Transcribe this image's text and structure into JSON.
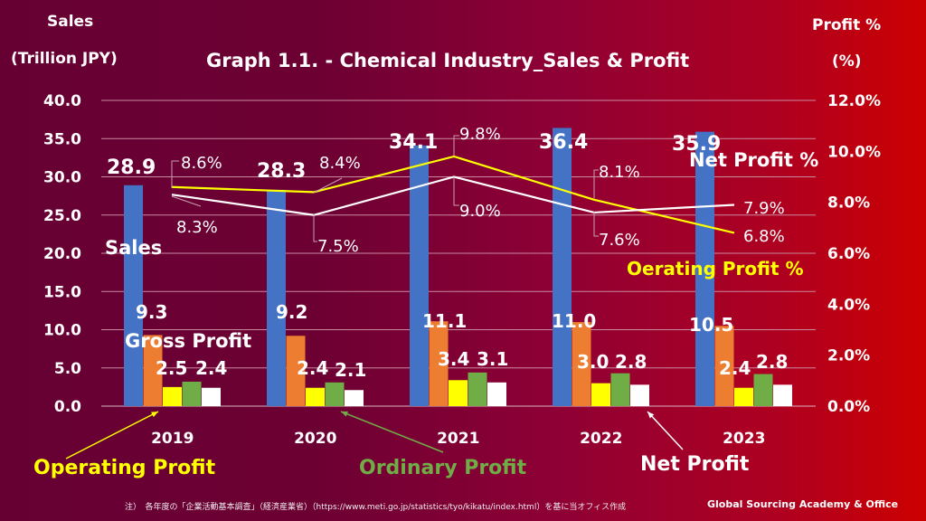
{
  "header": {
    "left_axis_title_line1": "Sales",
    "left_axis_title_line2": "(Trillion JPY)",
    "title": "Graph 1.1. -  Chemical Industry_Sales & Profit",
    "right_axis_title_line1": "Profit %",
    "right_axis_title_line2": "(%)"
  },
  "callouts": {
    "sales": "Sales",
    "gross_profit": "Gross Profit",
    "operating_profit": "Operating Profit",
    "ordinary_profit": "Ordinary Profit",
    "net_profit": "Net Profit",
    "net_profit_pct": "Net Profit %",
    "operating_profit_pct": "Oerating Profit %"
  },
  "colors": {
    "sales": "#4472c4",
    "gross_profit": "#ed7d31",
    "operating_profit": "#ffff00",
    "ordinary_profit": "#70ad47",
    "net_profit": "#ffffff",
    "operating_profit_pct_line": "#ffff00",
    "net_profit_pct_line": "#ffffff"
  },
  "footer": {
    "note": "注）　各年度の「企業活動基本調査」（経済産業省）（https://www.meti.go.jp/statistics/tyo/kikatu/index.html）を基に当オフィス作成",
    "brand": "Global Sourcing Academy & Office"
  },
  "chart_data": {
    "type": "bar",
    "title": "Graph 1.1. -  Chemical Industry_Sales & Profit",
    "xlabel": "",
    "ylabel": "Sales (Trillion JPY)",
    "y2label": "Profit % (%)",
    "categories": [
      "2019",
      "2020",
      "2021",
      "2022",
      "2023"
    ],
    "ylim": [
      0,
      40
    ],
    "yticks": [
      "0.0",
      "5.0",
      "10.0",
      "15.0",
      "20.0",
      "25.0",
      "30.0",
      "35.0",
      "40.0"
    ],
    "y2lim": [
      0,
      12
    ],
    "y2ticks": [
      "0.0%",
      "2.0%",
      "4.0%",
      "6.0%",
      "8.0%",
      "10.0%",
      "12.0%"
    ],
    "grid": true,
    "series": [
      {
        "name": "Sales",
        "type": "bar",
        "axis": "left",
        "values": [
          28.9,
          28.3,
          34.1,
          36.4,
          35.9
        ],
        "labels": [
          "28.9",
          "28.3",
          "34.1",
          "36.4",
          "35.9"
        ]
      },
      {
        "name": "Gross Profit",
        "type": "bar",
        "axis": "left",
        "values": [
          9.3,
          9.2,
          11.1,
          11.0,
          10.5
        ],
        "labels": [
          "9.3",
          "9.2",
          "11.1",
          "11.0",
          "10.5"
        ]
      },
      {
        "name": "Operating Profit",
        "type": "bar",
        "axis": "left",
        "values": [
          2.5,
          2.4,
          3.4,
          3.0,
          2.4
        ],
        "labels": [
          "2.5",
          "2.4",
          "3.4",
          "3.0",
          "2.4"
        ]
      },
      {
        "name": "Ordinary Profit",
        "type": "bar",
        "axis": "left",
        "values": [
          3.2,
          3.1,
          4.4,
          4.3,
          4.2
        ],
        "labels": []
      },
      {
        "name": "Net Profit",
        "type": "bar",
        "axis": "left",
        "values": [
          2.4,
          2.1,
          3.1,
          2.8,
          2.8
        ],
        "labels": [
          "2.4",
          "2.1",
          "3.1",
          "2.8",
          "2.8"
        ]
      },
      {
        "name": "Operating Profit %",
        "type": "line",
        "axis": "right",
        "values": [
          8.6,
          8.4,
          9.8,
          8.1,
          6.8
        ],
        "labels": [
          "8.6%",
          "8.4%",
          "9.8%",
          "8.1%",
          "6.8%"
        ]
      },
      {
        "name": "Net Profit %",
        "type": "line",
        "axis": "right",
        "values": [
          8.3,
          7.5,
          9.0,
          7.6,
          7.9
        ],
        "labels": [
          "8.3%",
          "7.5%",
          "9.0%",
          "7.6%",
          "7.9%"
        ]
      }
    ]
  }
}
